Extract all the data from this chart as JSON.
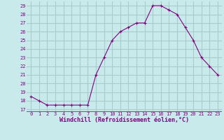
{
  "x": [
    0,
    1,
    2,
    3,
    4,
    5,
    6,
    7,
    8,
    9,
    10,
    11,
    12,
    13,
    14,
    15,
    16,
    17,
    18,
    19,
    20,
    21,
    22,
    23
  ],
  "y": [
    18.5,
    18.0,
    17.5,
    17.5,
    17.5,
    17.5,
    17.5,
    17.5,
    21.0,
    23.0,
    25.0,
    26.0,
    26.5,
    27.0,
    27.0,
    29.0,
    29.0,
    28.5,
    28.0,
    26.5,
    25.0,
    23.0,
    22.0,
    21.0
  ],
  "line_color": "#800080",
  "marker": "+",
  "bg_color": "#c8eaea",
  "grid_color": "#a8cccc",
  "xlabel": "Windchill (Refroidissement éolien,°C)",
  "ylabel_ticks": [
    17,
    18,
    19,
    20,
    21,
    22,
    23,
    24,
    25,
    26,
    27,
    28,
    29
  ],
  "ylim": [
    16.7,
    29.5
  ],
  "xlim": [
    -0.5,
    23.5
  ],
  "xticks": [
    0,
    1,
    2,
    3,
    4,
    5,
    6,
    7,
    8,
    9,
    10,
    11,
    12,
    13,
    14,
    15,
    16,
    17,
    18,
    19,
    20,
    21,
    22,
    23
  ],
  "tick_label_color": "#800080",
  "separator_color": "#6060a0",
  "xlabel_color": "#800080"
}
